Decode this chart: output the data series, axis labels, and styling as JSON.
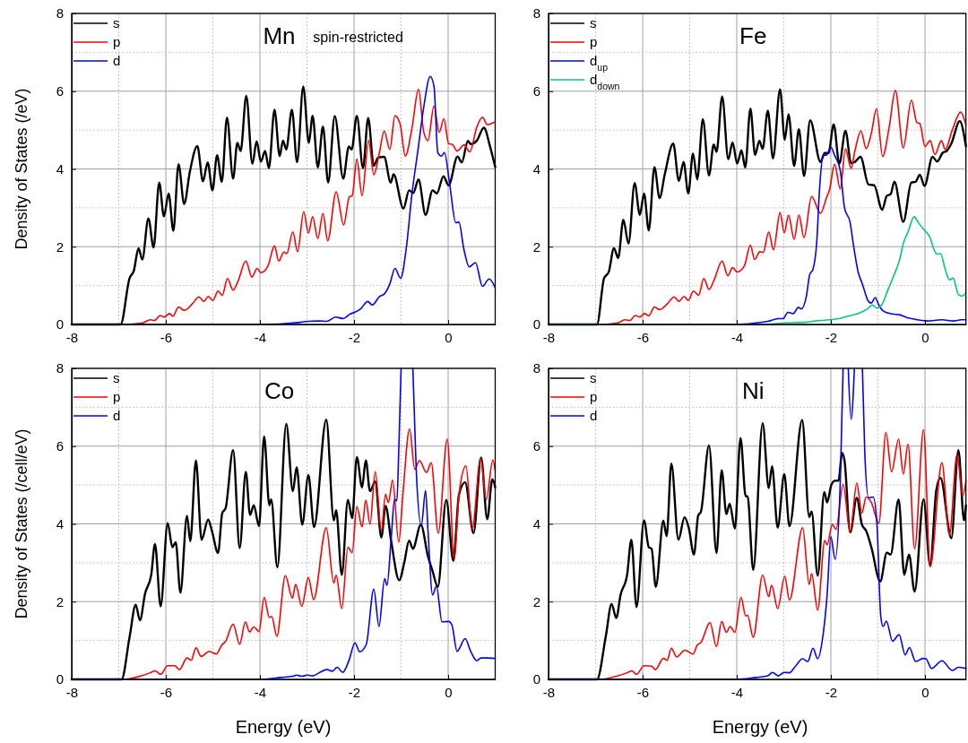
{
  "chart_data": [
    {
      "type": "line",
      "title": "Mn",
      "ylabel": "Density of States (/eV)",
      "annotations": [
        "spin-restricted"
      ],
      "xlim": [
        -8,
        1
      ],
      "ylim": [
        0,
        8
      ],
      "xticks": [
        -8,
        -6,
        -4,
        -2,
        0
      ],
      "yticks": [
        0,
        2,
        4,
        6,
        8
      ],
      "grid": true,
      "legend": "top left",
      "series": [
        {
          "name": "s",
          "color": "#000000",
          "x": [
            -8,
            -6.96,
            -6.77,
            -6.68,
            -6.58,
            -6.5,
            -6.37,
            -6.26,
            -6.14,
            -6.04,
            -5.94,
            -5.84,
            -5.73,
            -5.61,
            -5.49,
            -5.33,
            -5.21,
            -5.11,
            -5.01,
            -4.91,
            -4.81,
            -4.7,
            -4.57,
            -4.48,
            -4.41,
            -4.29,
            -4.16,
            -4.07,
            -3.98,
            -3.89,
            -3.81,
            -3.69,
            -3.58,
            -3.51,
            -3.44,
            -3.32,
            -3.21,
            -3.08,
            -2.96,
            -2.88,
            -2.77,
            -2.66,
            -2.55,
            -2.41,
            -2.23,
            -2.11,
            -2.05,
            -1.94,
            -1.81,
            -1.7,
            -1.58,
            -1.49,
            -1.36,
            -1.22,
            -1.16,
            -0.95,
            -0.83,
            -0.74,
            -0.63,
            -0.48,
            -0.33,
            -0.24,
            -0.1,
            0.01,
            0.2,
            0.29,
            0.42,
            0.48,
            0.61,
            0.76,
            0.89,
            1.0
          ],
          "values": [
            0,
            0,
            1.19,
            1.38,
            1.96,
            1.67,
            2.73,
            1.98,
            3.65,
            2.78,
            3.37,
            2.41,
            4.12,
            3.1,
            3.92,
            4.59,
            3.68,
            4.17,
            3.45,
            4.35,
            3.67,
            5.32,
            3.75,
            4.67,
            4.46,
            5.88,
            4.13,
            4.71,
            4.19,
            4.46,
            4.02,
            5.52,
            4.33,
            4.73,
            4.5,
            5.52,
            4.17,
            6.12,
            4.67,
            5.37,
            4.04,
            5.09,
            3.65,
            5.36,
            3.75,
            4.58,
            4.5,
            5.37,
            4.02,
            5.31,
            4.08,
            4.29,
            4.31,
            3.65,
            3.86,
            2.98,
            3.45,
            3.38,
            3.73,
            2.82,
            3.45,
            3.37,
            3.81,
            3.58,
            4.32,
            4.17,
            4.72,
            4.64,
            4.73,
            5.06,
            4.58,
            4.05
          ]
        },
        {
          "name": "p",
          "color": "#ff0000",
          "x": [
            -8,
            -6.9,
            -6.49,
            -6.33,
            -6.24,
            -6.12,
            -6.04,
            -5.92,
            -5.85,
            -5.73,
            -5.61,
            -5.43,
            -5.3,
            -5.19,
            -5.1,
            -5.0,
            -4.89,
            -4.8,
            -4.69,
            -4.57,
            -4.46,
            -4.3,
            -4.17,
            -4.06,
            -3.98,
            -3.83,
            -3.69,
            -3.6,
            -3.49,
            -3.43,
            -3.3,
            -3.2,
            -3.07,
            -2.97,
            -2.88,
            -2.77,
            -2.66,
            -2.56,
            -2.38,
            -2.22,
            -2.1,
            -2.04,
            -1.94,
            -1.83,
            -1.69,
            -1.58,
            -1.46,
            -1.36,
            -1.24,
            -1.13,
            -1.02,
            -0.91,
            -0.77,
            -0.63,
            -0.52,
            -0.43,
            -0.3,
            -0.19,
            -0.09,
            0.01,
            0.09,
            0.19,
            0.34,
            0.46,
            0.61,
            0.73,
            0.83,
            1.0
          ],
          "values": [
            0,
            0,
            0.04,
            0.12,
            0.1,
            0.23,
            0.19,
            0.28,
            0.21,
            0.45,
            0.36,
            0.54,
            0.71,
            0.59,
            0.72,
            0.62,
            0.86,
            0.75,
            1.18,
            0.88,
            1.13,
            1.63,
            1.22,
            1.44,
            1.33,
            1.5,
            2.02,
            1.63,
            1.86,
            1.82,
            2.38,
            1.87,
            2.9,
            2.35,
            2.77,
            2.21,
            2.86,
            2.15,
            3.41,
            2.56,
            3.28,
            3.31,
            4.25,
            3.31,
            4.73,
            3.85,
            4.42,
            4.98,
            4.5,
            5.37,
            5.15,
            4.33,
            5.04,
            6.05,
            4.96,
            4.73,
            5.62,
            4.94,
            5.29,
            4.65,
            4.63,
            4.46,
            4.62,
            4.44,
            5.08,
            5.33,
            5.14,
            5.21
          ]
        },
        {
          "name": "d",
          "color": "#0000ff",
          "x": [
            -8,
            -4,
            -3.18,
            -2.99,
            -2.74,
            -2.58,
            -2.39,
            -2.23,
            -2.08,
            -1.99,
            -1.86,
            -1.71,
            -1.61,
            -1.46,
            -1.36,
            -1.24,
            -1.13,
            -1.01,
            -0.89,
            -0.77,
            -0.64,
            -0.52,
            -0.38,
            -0.3,
            -0.22,
            -0.14,
            -0.08,
            0.04,
            0.16,
            0.23,
            0.33,
            0.45,
            0.58,
            0.73,
            0.87,
            1.0
          ],
          "values": [
            0,
            0,
            0.05,
            0.08,
            0.09,
            0.08,
            0.19,
            0.15,
            0.27,
            0.31,
            0.4,
            0.59,
            0.5,
            0.72,
            0.78,
            1.04,
            1.44,
            1.19,
            1.96,
            3.35,
            4.5,
            5.58,
            6.38,
            6.12,
            4.42,
            4.33,
            4.42,
            3.54,
            2.62,
            2.63,
            1.96,
            1.48,
            1.59,
            0.98,
            1.17,
            0.95
          ]
        }
      ]
    },
    {
      "type": "line",
      "title": "Fe",
      "xlim": [
        -8,
        0.87
      ],
      "ylim": [
        0,
        8
      ],
      "xticks": [
        -8,
        -6,
        -4,
        -2,
        0
      ],
      "yticks": [
        0,
        2,
        4,
        6,
        8
      ],
      "grid": true,
      "legend": "top left",
      "series": [
        {
          "name": "s",
          "color": "#000000",
          "x": [
            -8,
            -6.97,
            -6.82,
            -6.72,
            -6.61,
            -6.52,
            -6.41,
            -6.3,
            -6.17,
            -6.06,
            -5.97,
            -5.87,
            -5.75,
            -5.64,
            -5.53,
            -5.35,
            -5.23,
            -5.13,
            -5.03,
            -4.93,
            -4.84,
            -4.72,
            -4.59,
            -4.49,
            -4.43,
            -4.31,
            -4.18,
            -4.09,
            -3.99,
            -3.9,
            -3.82,
            -3.71,
            -3.61,
            -3.52,
            -3.45,
            -3.34,
            -3.23,
            -3.08,
            -2.98,
            -2.9,
            -2.78,
            -2.68,
            -2.57,
            -2.44,
            -2.22,
            -2.13,
            -2.05,
            -1.94,
            -1.82,
            -1.69,
            -1.57,
            -1.49,
            -1.37,
            -1.2,
            -1.08,
            -0.91,
            -0.81,
            -0.73,
            -0.65,
            -0.46,
            -0.29,
            -0.2,
            -0.11,
            -0.01,
            0.16,
            0.26,
            0.38,
            0.46,
            0.56,
            0.74,
            0.87
          ],
          "values": [
            0,
            0,
            1.19,
            1.35,
            1.96,
            1.71,
            2.69,
            2.08,
            3.64,
            2.82,
            3.37,
            2.42,
            4.05,
            3.25,
            3.86,
            4.65,
            3.69,
            4.18,
            3.37,
            4.4,
            3.73,
            5.28,
            3.83,
            4.63,
            4.44,
            5.86,
            4.25,
            4.68,
            4.14,
            4.48,
            4.04,
            5.55,
            4.36,
            4.72,
            4.52,
            5.5,
            4.27,
            6.05,
            4.75,
            5.41,
            4.08,
            5.02,
            3.82,
            5.25,
            4.18,
            4.41,
            4.41,
            5.15,
            4.14,
            4.98,
            4.15,
            4.18,
            4.31,
            3.6,
            3.58,
            2.95,
            3.31,
            3.35,
            3.67,
            2.64,
            3.65,
            3.67,
            3.85,
            3.56,
            4.31,
            4.19,
            4.42,
            4.46,
            4.65,
            5.23,
            4.58
          ]
        },
        {
          "name": "p",
          "color": "#ff0000",
          "x": [
            -8,
            -6.9,
            -6.53,
            -6.38,
            -6.27,
            -6.16,
            -6.06,
            -5.96,
            -5.87,
            -5.75,
            -5.64,
            -5.47,
            -5.33,
            -5.23,
            -5.12,
            -5.03,
            -4.92,
            -4.81,
            -4.7,
            -4.59,
            -4.48,
            -4.31,
            -4.19,
            -4.09,
            -3.99,
            -3.84,
            -3.71,
            -3.62,
            -3.51,
            -3.44,
            -3.32,
            -3.22,
            -3.08,
            -2.99,
            -2.9,
            -2.78,
            -2.68,
            -2.57,
            -2.41,
            -2.22,
            -2.09,
            -2.03,
            -1.92,
            -1.8,
            -1.69,
            -1.57,
            -1.49,
            -1.36,
            -1.25,
            -1.14,
            -1.03,
            -0.9,
            -0.76,
            -0.63,
            -0.46,
            -0.29,
            -0.17,
            -0.11,
            0,
            0.11,
            0.21,
            0.35,
            0.43,
            0.58,
            0.76,
            0.87
          ],
          "values": [
            0,
            0,
            0.04,
            0.12,
            0.1,
            0.23,
            0.19,
            0.28,
            0.22,
            0.45,
            0.38,
            0.54,
            0.71,
            0.59,
            0.72,
            0.62,
            0.86,
            0.75,
            1.18,
            0.9,
            1.15,
            1.63,
            1.25,
            1.46,
            1.35,
            1.5,
            2.04,
            1.67,
            1.87,
            1.85,
            2.38,
            1.92,
            2.88,
            2.36,
            2.81,
            2.19,
            2.82,
            2.23,
            3.29,
            2.86,
            3.27,
            3.46,
            4.12,
            3.48,
            4.52,
            4.02,
            4.46,
            4.98,
            4.52,
            4.92,
            5.55,
            4.32,
            5.08,
            6.02,
            4.54,
            5.77,
            5.19,
            5.17,
            4.58,
            4.73,
            4.37,
            4.73,
            4.5,
            5.0,
            5.46,
            5.13
          ]
        },
        {
          "name": "d$_{up}$",
          "color": "#0000ff",
          "x": [
            -8,
            -4,
            -3.59,
            -3.34,
            -3.12,
            -3.02,
            -2.91,
            -2.8,
            -2.69,
            -2.63,
            -2.52,
            -2.45,
            -2.38,
            -2.3,
            -2.24,
            -2.16,
            -2.09,
            -2.0,
            -1.92,
            -1.8,
            -1.71,
            -1.59,
            -1.52,
            -1.42,
            -1.33,
            -1.2,
            -1.14,
            -1.06,
            -0.98,
            -0.89,
            -0.7,
            -0.55,
            -0.39,
            -0.2,
            0.05,
            0.36,
            0.61,
            0.77,
            0.87
          ],
          "values": [
            0,
            0,
            0.04,
            0.08,
            0.15,
            0.15,
            0.31,
            0.28,
            0.44,
            0.4,
            0.73,
            1.28,
            1.42,
            2.12,
            3.5,
            4.35,
            4.36,
            4.56,
            4.35,
            3.96,
            3.0,
            2.62,
            2.04,
            1.35,
            1.04,
            0.59,
            0.55,
            0.69,
            0.5,
            0.35,
            0.27,
            0.25,
            0.18,
            0.13,
            0.09,
            0.12,
            0.09,
            0.12,
            0.12
          ]
        },
        {
          "name": "d$_{down}$",
          "color": "#00c882",
          "x": [
            -8,
            -3.5,
            -2.96,
            -2.52,
            -2.33,
            -2.02,
            -1.83,
            -1.71,
            -1.58,
            -1.45,
            -1.33,
            -1.2,
            -1.12,
            -1.02,
            -0.92,
            -0.8,
            -0.7,
            -0.55,
            -0.45,
            -0.36,
            -0.23,
            -0.14,
            -0.01,
            0.11,
            0.18,
            0.26,
            0.33,
            0.43,
            0.52,
            0.6,
            0.71,
            0.79,
            0.87
          ],
          "values": [
            0,
            0,
            0.04,
            0.06,
            0.09,
            0.12,
            0.15,
            0.19,
            0.23,
            0.27,
            0.33,
            0.42,
            0.5,
            0.42,
            0.5,
            0.85,
            1.15,
            1.62,
            2.12,
            2.38,
            2.77,
            2.62,
            2.42,
            2.23,
            1.96,
            1.81,
            1.82,
            1.42,
            1.15,
            1.19,
            0.77,
            0.73,
            0.81
          ]
        }
      ]
    },
    {
      "type": "line",
      "title": "Co",
      "xlabel": "Energy (eV)",
      "ylabel": "Density of States (/cell/eV)",
      "xlim": [
        -8,
        1
      ],
      "ylim": [
        0,
        8
      ],
      "xticks": [
        -8,
        -6,
        -4,
        -2,
        0
      ],
      "yticks": [
        0,
        2,
        4,
        6,
        8
      ],
      "grid": true,
      "legend": "top left",
      "series": [
        {
          "name": "s",
          "color": "#000000",
          "x": [
            -8,
            -6.94,
            -6.77,
            -6.64,
            -6.55,
            -6.44,
            -6.31,
            -6.23,
            -6.11,
            -5.96,
            -5.86,
            -5.79,
            -5.69,
            -5.55,
            -5.48,
            -5.36,
            -5.24,
            -5.1,
            -5.02,
            -4.89,
            -4.8,
            -4.73,
            -4.57,
            -4.43,
            -4.3,
            -4.21,
            -4.13,
            -4.02,
            -3.91,
            -3.8,
            -3.76,
            -3.63,
            -3.44,
            -3.3,
            -3.22,
            -3.1,
            -2.97,
            -2.85,
            -2.59,
            -2.43,
            -2.38,
            -2.26,
            -2.13,
            -2.04,
            -1.94,
            -1.83,
            -1.75,
            -1.66,
            -1.55,
            -1.42,
            -1.33,
            -1.21,
            -1.04,
            -0.93,
            -0.83,
            -0.75,
            -0.58,
            -0.43,
            -0.33,
            -0.22,
            -0.04,
            0.11,
            0.23,
            0.36,
            0.54,
            0.7,
            0.83,
            0.94,
            1.0
          ],
          "values": [
            0,
            0,
            1.09,
            1.92,
            1.52,
            2.21,
            2.69,
            3.48,
            1.88,
            4.02,
            3.4,
            3.53,
            2.23,
            4.21,
            3.55,
            5.63,
            3.59,
            4.11,
            3.82,
            3.25,
            4.28,
            4.4,
            5.9,
            3.38,
            5.34,
            4.23,
            4.48,
            3.94,
            6.25,
            4.48,
            4.63,
            2.88,
            6.57,
            4.84,
            5.46,
            3.98,
            5.26,
            3.92,
            6.68,
            4.09,
            4.35,
            2.69,
            4.62,
            4.15,
            5.72,
            4.94,
            5.63,
            4.84,
            5.09,
            3.65,
            4.46,
            3.55,
            2.55,
            3.02,
            3.57,
            3.36,
            3.98,
            3.17,
            2.78,
            2.38,
            4.62,
            3.05,
            4.75,
            5.07,
            3.76,
            5.71,
            4.12,
            5.15,
            4.94
          ]
        },
        {
          "name": "p",
          "color": "#ff0000",
          "x": [
            -8,
            -6.9,
            -6.55,
            -6.33,
            -6.23,
            -6.11,
            -5.96,
            -5.81,
            -5.71,
            -5.55,
            -5.46,
            -5.36,
            -5.25,
            -5.08,
            -4.93,
            -4.81,
            -4.73,
            -4.57,
            -4.43,
            -4.31,
            -4.22,
            -4.13,
            -4.02,
            -3.91,
            -3.8,
            -3.75,
            -3.64,
            -3.46,
            -3.31,
            -3.24,
            -3.11,
            -2.97,
            -2.86,
            -2.59,
            -2.43,
            -2.38,
            -2.26,
            -2.13,
            -2.04,
            -1.94,
            -1.83,
            -1.75,
            -1.66,
            -1.55,
            -1.42,
            -1.33,
            -1.27,
            -1.18,
            -1.05,
            -0.96,
            -0.82,
            -0.71,
            -0.61,
            -0.46,
            -0.36,
            -0.21,
            -0.02,
            0.13,
            0.23,
            0.38,
            0.51,
            0.69,
            0.81,
            0.95,
            1.0
          ],
          "values": [
            0,
            0,
            0.08,
            0.17,
            0.22,
            0.13,
            0.35,
            0.35,
            0.25,
            0.55,
            0.49,
            0.81,
            0.59,
            0.72,
            0.65,
            0.88,
            0.98,
            1.42,
            0.9,
            1.48,
            1.22,
            1.35,
            1.23,
            2.11,
            1.59,
            1.62,
            1.11,
            2.67,
            2.09,
            2.44,
            1.88,
            2.62,
            2.05,
            3.9,
            2.48,
            2.68,
            1.82,
            3.4,
            3.26,
            4.45,
            3.92,
            4.61,
            3.99,
            5.34,
            3.82,
            4.76,
            4.55,
            5.13,
            3.53,
            4.78,
            6.44,
            5.4,
            5.63,
            5.32,
            5.57,
            3.76,
            6.18,
            3.09,
            4.75,
            5.49,
            3.86,
            5.69,
            4.62,
            5.65,
            5.36
          ]
        },
        {
          "name": "d",
          "color": "#0000ff",
          "x": [
            -8,
            -4,
            -3.55,
            -3.3,
            -3.22,
            -3.11,
            -2.99,
            -2.88,
            -2.74,
            -2.58,
            -2.46,
            -2.36,
            -2.24,
            -2.11,
            -1.98,
            -1.88,
            -1.74,
            -1.58,
            -1.47,
            -1.35,
            -1.3,
            -1.21,
            -1.14,
            -1.09,
            -1.05,
            -1.0,
            -0.87,
            -0.75,
            -0.68,
            -0.57,
            -0.48,
            -0.43,
            -0.33,
            -0.25,
            -0.13,
            0.01,
            0.08,
            0.19,
            0.36,
            0.48,
            0.61,
            0.7,
            0.83,
            1.0
          ],
          "values": [
            0,
            0,
            0.05,
            0.08,
            0.11,
            0.08,
            0.11,
            0.09,
            0.17,
            0.25,
            0.21,
            0.31,
            0.18,
            0.48,
            0.94,
            0.71,
            0.9,
            2.32,
            1.36,
            2.59,
            2.42,
            3.63,
            4.63,
            4.59,
            5.86,
            8,
            null,
            8,
            5.44,
            3.95,
            4.86,
            3.86,
            2.17,
            2.4,
            1.48,
            1.49,
            1.4,
            0.72,
            1.05,
            0.72,
            0.48,
            0.55,
            0.55,
            0.54
          ]
        }
      ]
    },
    {
      "type": "line",
      "title": "Ni",
      "xlabel": "Energy (eV)",
      "xlim": [
        -8,
        0.87
      ],
      "ylim": [
        0,
        8
      ],
      "xticks": [
        -8,
        -6,
        -4,
        -2,
        0
      ],
      "yticks": [
        0,
        2,
        4,
        6,
        8
      ],
      "grid": true,
      "legend": "top left",
      "series": [
        {
          "name": "s",
          "color": "#000000",
          "x": [
            -8,
            -6.97,
            -6.78,
            -6.66,
            -6.56,
            -6.47,
            -6.33,
            -6.24,
            -6.13,
            -5.97,
            -5.87,
            -5.81,
            -5.72,
            -5.56,
            -5.49,
            -5.39,
            -5.24,
            -5.11,
            -5.02,
            -4.91,
            -4.82,
            -4.76,
            -4.59,
            -4.43,
            -4.32,
            -4.22,
            -4.15,
            -4.04,
            -3.92,
            -3.81,
            -3.77,
            -3.65,
            -3.45,
            -3.32,
            -3.25,
            -3.13,
            -2.99,
            -2.88,
            -2.61,
            -2.46,
            -2.41,
            -2.28,
            -2.14,
            -2.08,
            -1.99,
            -1.91,
            -1.84,
            -1.76,
            -1.71,
            -1.59,
            -1.45,
            -1.34,
            -1.25,
            -1.14,
            -0.95,
            -0.81,
            -0.73,
            -0.56,
            -0.44,
            -0.34,
            -0.22,
            -0.03,
            0.11,
            0.24,
            0.33,
            0.56,
            0.71,
            0.83,
            0.87
          ],
          "values": [
            0,
            0,
            1.13,
            1.94,
            1.58,
            2.17,
            2.69,
            3.59,
            1.86,
            4.09,
            3.4,
            3.36,
            2.38,
            4.08,
            3.68,
            5.55,
            3.59,
            4.17,
            3.9,
            3.21,
            4.21,
            4.32,
            6.02,
            3.25,
            5.38,
            4.25,
            4.52,
            3.88,
            6.21,
            4.71,
            4.71,
            2.81,
            6.59,
            4.92,
            5.48,
            3.9,
            5.28,
            3.94,
            6.67,
            4.18,
            4.32,
            2.67,
            4.82,
            4.55,
            5.0,
            5.11,
            5.11,
            5.82,
            5.63,
            3.78,
            4.67,
            3.98,
            3.82,
            3.4,
            2.52,
            3.26,
            3.21,
            4.63,
            2.69,
            3.21,
            2.26,
            4.63,
            2.92,
            4.86,
            5.18,
            3.63,
            5.9,
            4.09,
            4.48
          ]
        },
        {
          "name": "p",
          "color": "#ff0000",
          "x": [
            -8,
            -6.9,
            -6.56,
            -6.33,
            -6.23,
            -6.13,
            -5.97,
            -5.81,
            -5.73,
            -5.56,
            -5.48,
            -5.39,
            -5.28,
            -5.1,
            -4.93,
            -4.84,
            -4.76,
            -4.57,
            -4.43,
            -4.32,
            -4.22,
            -4.14,
            -4.04,
            -3.91,
            -3.81,
            -3.77,
            -3.65,
            -3.45,
            -3.32,
            -3.26,
            -3.13,
            -2.98,
            -2.88,
            -2.6,
            -2.46,
            -2.41,
            -2.28,
            -2.13,
            -2.08,
            -1.97,
            -1.89,
            -1.74,
            -1.59,
            -1.45,
            -1.34,
            -1.25,
            -1.14,
            -0.98,
            -0.83,
            -0.71,
            -0.56,
            -0.46,
            -0.36,
            -0.22,
            -0.03,
            0.11,
            0.36,
            0.52,
            0.68,
            0.8,
            0.87
          ],
          "values": [
            0,
            0,
            0.08,
            0.17,
            0.22,
            0.13,
            0.35,
            0.34,
            0.25,
            0.54,
            0.49,
            0.8,
            0.58,
            0.75,
            0.65,
            0.88,
            0.95,
            1.46,
            0.84,
            1.49,
            1.21,
            1.36,
            1.21,
            2.11,
            1.63,
            1.65,
            1.08,
            2.68,
            2.13,
            2.42,
            1.82,
            2.65,
            2.04,
            3.9,
            2.44,
            2.72,
            1.78,
            3.57,
            3.46,
            3.98,
            3.86,
            5.02,
            3.78,
            5.05,
            4.28,
            4.69,
            4.55,
            4.02,
            6.35,
            5.34,
            6.18,
            5.28,
            6.05,
            3.36,
            6.42,
            2.9,
            5.57,
            3.72,
            5.78,
            4.71,
            5.11
          ]
        },
        {
          "name": "d",
          "color": "#0000ff",
          "x": [
            -8,
            -4,
            -3.59,
            -3.34,
            -3.24,
            -3.12,
            -2.99,
            -2.88,
            -2.77,
            -2.6,
            -2.49,
            -2.38,
            -2.28,
            -2.18,
            -2.08,
            -2.0,
            -1.91,
            -1.8,
            -1.74,
            -1.69,
            -1.63,
            -1.57,
            -1.5,
            -1.4,
            -1.33,
            -1.28,
            -1.2,
            -1.1,
            -1.02,
            -0.94,
            -0.89,
            -0.82,
            -0.69,
            -0.55,
            -0.42,
            -0.33,
            -0.2,
            -0.04,
            0.02,
            0.14,
            0.36,
            0.58,
            0.71,
            0.87
          ],
          "values": [
            0,
            0,
            0.05,
            0.09,
            0.18,
            0.09,
            0.18,
            0.17,
            0.31,
            0.53,
            0.46,
            0.8,
            0.53,
            1.02,
            2.17,
            3.67,
            3.09,
            5.09,
            8,
            null,
            8,
            6.69,
            8,
            null,
            8,
            5.86,
            4.67,
            4.69,
            3.98,
            1.63,
            1.36,
            1.5,
            0.98,
            1.15,
            0.63,
            0.82,
            0.46,
            0.54,
            0.53,
            0.28,
            0.48,
            0.23,
            0.31,
            0.28
          ]
        }
      ]
    }
  ]
}
